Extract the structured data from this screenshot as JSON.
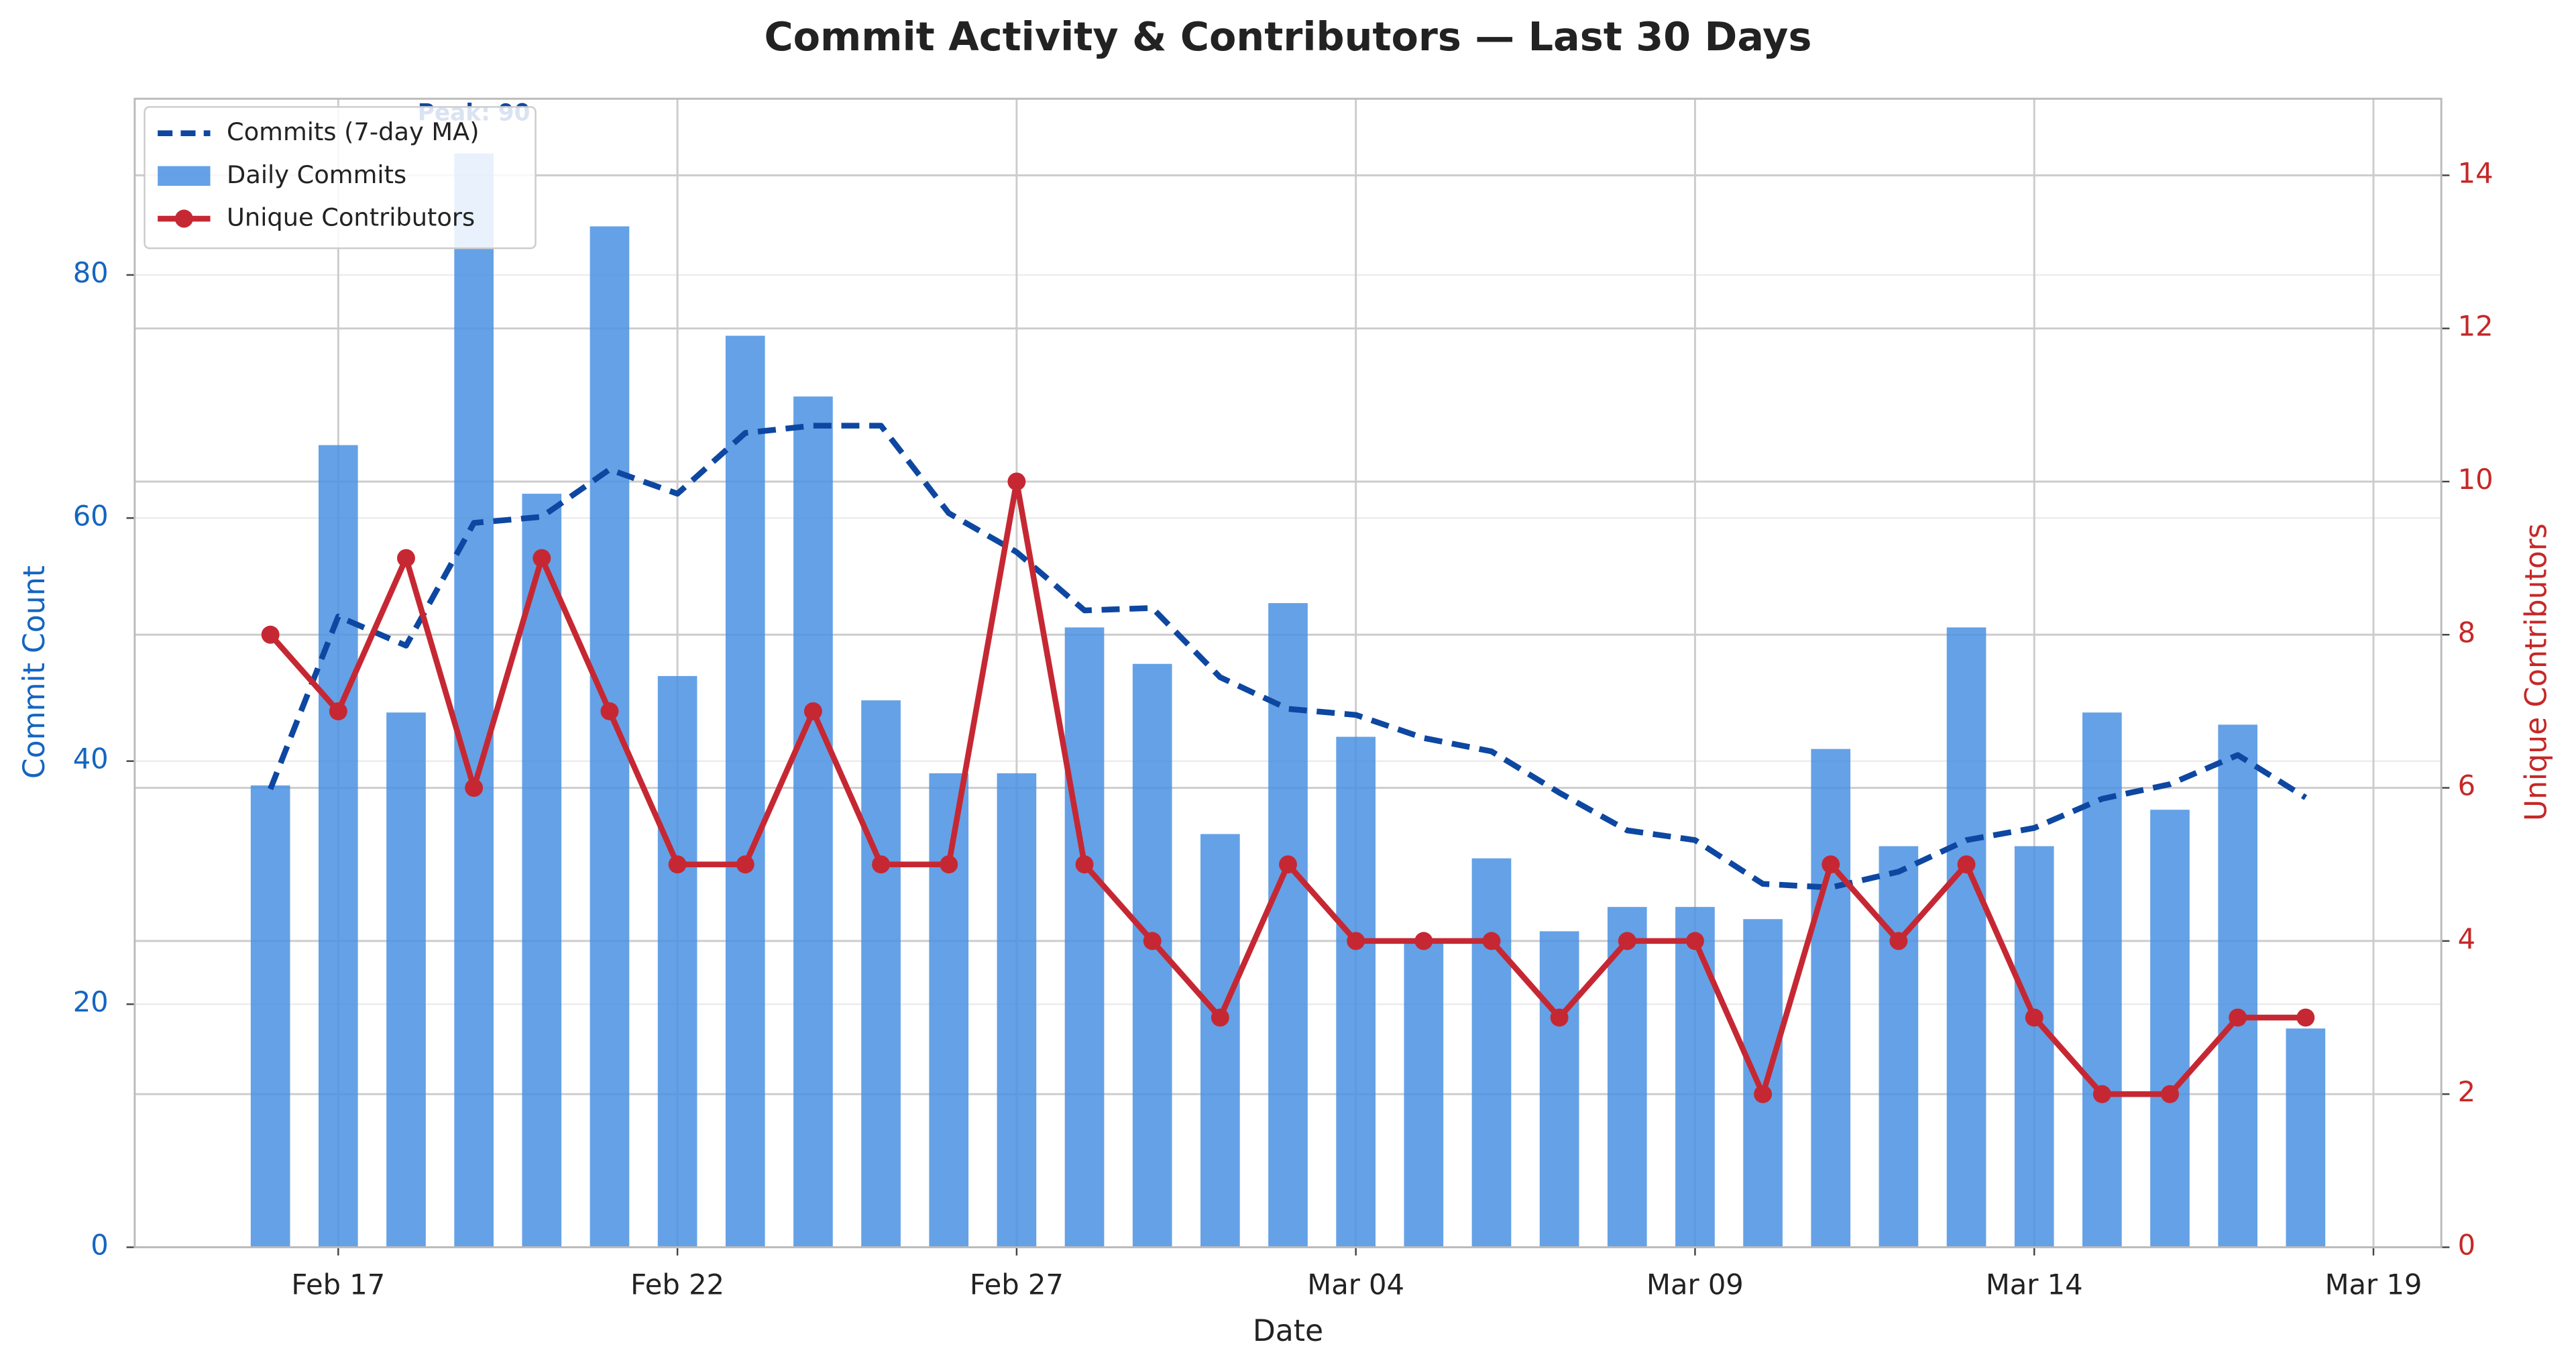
{
  "chart_data": {
    "type": "bar-line",
    "title": "Commit Activity & Contributors — Last 30 Days",
    "xlabel": "Date",
    "ylabel": "Commit Count",
    "y2label": "Unique Contributors",
    "x": [
      "02-16",
      "02-17",
      "02-18",
      "02-19",
      "02-20",
      "02-21",
      "02-22",
      "02-23",
      "02-24",
      "02-25",
      "02-26",
      "02-27",
      "02-28",
      "03-01",
      "03-02",
      "03-03",
      "03-04",
      "03-05",
      "03-06",
      "03-07",
      "03-08",
      "03-09",
      "03-10",
      "03-11",
      "03-12",
      "03-13",
      "03-14",
      "03-15",
      "03-16",
      "03-17",
      "03-18"
    ],
    "xlim": [
      "02-14",
      "03-20"
    ],
    "xticks": [
      {
        "value": "02-17",
        "label": "Feb 17"
      },
      {
        "value": "02-22",
        "label": "Feb 22"
      },
      {
        "value": "02-27",
        "label": "Feb 27"
      },
      {
        "value": "03-04",
        "label": "Mar 04"
      },
      {
        "value": "03-09",
        "label": "Mar 09"
      },
      {
        "value": "03-14",
        "label": "Mar 14"
      },
      {
        "value": "03-19",
        "label": "Mar 19"
      }
    ],
    "ylim": [
      0,
      94.5
    ],
    "yticks": [
      0,
      20,
      40,
      60,
      80
    ],
    "y2lim": [
      0,
      15
    ],
    "y2ticks": [
      0,
      2,
      4,
      6,
      8,
      10,
      12,
      14
    ],
    "grid": true,
    "legend": "upper left",
    "series": [
      {
        "name": "Commits (7-day MA)",
        "type": "line",
        "dashed": true,
        "color": "#0d47a1",
        "values": [
          37.7,
          51.9,
          49.5,
          59.6,
          60.1,
          64.0,
          62.0,
          67.0,
          67.6,
          67.6,
          60.4,
          57.2,
          52.4,
          52.6,
          46.9,
          44.3,
          43.8,
          41.9,
          40.8,
          37.4,
          34.3,
          33.5,
          29.9,
          29.6,
          30.9,
          33.5,
          34.5,
          36.9,
          38.1,
          40.5,
          37.0
        ]
      },
      {
        "name": "Daily Commits",
        "type": "bar",
        "color": "#4a90e2",
        "values": [
          38,
          66,
          44,
          90,
          62,
          84,
          47,
          75,
          70,
          45,
          39,
          39,
          51,
          48,
          34,
          53,
          42,
          25,
          32,
          26,
          28,
          28,
          27,
          41,
          33,
          51,
          33,
          44,
          36,
          43,
          18
        ]
      },
      {
        "name": "Unique Contributors",
        "type": "line",
        "markers": true,
        "axis": "y2",
        "color": "#c62833",
        "values": [
          8,
          7,
          9,
          6,
          9,
          7,
          5,
          5,
          7,
          5,
          5,
          10,
          5,
          4,
          3,
          5,
          4,
          4,
          4,
          3,
          4,
          4,
          2,
          5,
          4,
          5,
          3,
          2,
          2,
          3,
          3
        ]
      }
    ],
    "annotations": [
      {
        "text": "Peak: 90",
        "x": "02-19",
        "y": 90
      }
    ]
  }
}
